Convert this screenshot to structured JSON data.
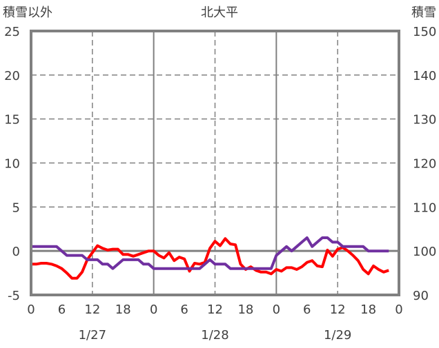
{
  "chart_data": {
    "type": "line",
    "title": "北大平",
    "ylabel_left": "積雪以外",
    "ylabel_right": "積雪",
    "ylim_left": [
      -5,
      25
    ],
    "ylim_right": [
      90,
      150
    ],
    "yticks_left": [
      "-5",
      "0",
      "5",
      "10",
      "15",
      "20",
      "25"
    ],
    "yticks_right": [
      "90",
      "100",
      "110",
      "120",
      "130",
      "140",
      "150"
    ],
    "xlim_hours": [
      0,
      72
    ],
    "xtick_labels": [
      "0",
      "6",
      "12",
      "18",
      "0",
      "6",
      "12",
      "18",
      "0",
      "6",
      "12",
      "18",
      "0"
    ],
    "date_labels": [
      "1/27",
      "1/28",
      "1/29"
    ],
    "grid": true,
    "series": [
      {
        "name": "積雪以外",
        "axis": "left",
        "color": "#FF0000",
        "values": [
          -1.5,
          -1.5,
          -1.4,
          -1.4,
          -1.5,
          -1.7,
          -2.0,
          -2.5,
          -3.1,
          -3.1,
          -2.4,
          -1.0,
          -0.2,
          0.6,
          0.3,
          0.1,
          0.2,
          0.2,
          -0.4,
          -0.4,
          -0.6,
          -0.4,
          -0.2,
          0.0,
          0.0,
          -0.5,
          -0.8,
          -0.2,
          -1.1,
          -0.7,
          -0.9,
          -2.3,
          -1.4,
          -1.5,
          -1.3,
          0.3,
          1.1,
          0.6,
          1.4,
          0.8,
          0.7,
          -1.5,
          -2.1,
          -1.8,
          -2.2,
          -2.4,
          -2.4,
          -2.6,
          -2.1,
          -2.3,
          -1.9,
          -1.9,
          -2.1,
          -1.8,
          -1.3,
          -1.1,
          -1.7,
          -1.8,
          0.1,
          -0.6,
          0.2,
          0.4,
          0.0,
          -0.5,
          -1.1,
          -2.1,
          -2.6,
          -1.7,
          -2.1,
          -2.4,
          -2.2
        ]
      },
      {
        "name": "積雪",
        "axis": "right",
        "color": "#7030A0",
        "values": [
          101,
          101,
          101,
          101,
          101,
          101,
          100,
          99,
          99,
          99,
          99,
          98,
          98,
          98,
          97,
          97,
          96,
          97,
          98,
          98,
          98,
          98,
          97,
          97,
          96,
          96,
          96,
          96,
          96,
          96,
          96,
          96,
          96,
          96,
          97,
          98,
          97,
          97,
          97,
          96,
          96,
          96,
          96,
          96,
          96,
          96,
          96,
          96,
          99,
          100,
          101,
          100,
          101,
          102,
          103,
          101,
          102,
          103,
          103,
          102,
          102,
          101,
          101,
          101,
          101,
          101,
          100,
          100,
          100,
          100,
          100
        ]
      }
    ]
  }
}
